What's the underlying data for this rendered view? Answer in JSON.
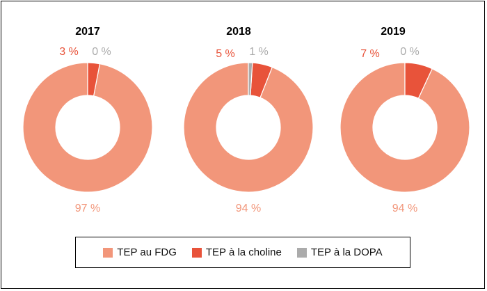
{
  "chart_data": [
    {
      "type": "donut",
      "title": "2017",
      "categories": [
        "TEP au FDG",
        "TEP à la choline",
        "TEP à la DOPA"
      ],
      "values": [
        97,
        3,
        0
      ],
      "labels": [
        "97 %",
        "3 %",
        "0 %"
      ]
    },
    {
      "type": "donut",
      "title": "2018",
      "categories": [
        "TEP au FDG",
        "TEP à la choline",
        "TEP à la DOPA"
      ],
      "values": [
        94,
        5,
        1
      ],
      "labels": [
        "94 %",
        "5 %",
        "1 %"
      ]
    },
    {
      "type": "donut",
      "title": "2019",
      "categories": [
        "TEP au FDG",
        "TEP à la choline",
        "TEP à la DOPA"
      ],
      "values": [
        94,
        7,
        0
      ],
      "labels": [
        "94 %",
        "7 %",
        "0 %"
      ]
    }
  ],
  "colors": {
    "fdg": "#F2967A",
    "choline": "#E8533A",
    "dopa": "#ABABAB"
  },
  "legend": {
    "placement": "bottom",
    "items": [
      {
        "label": "TEP au FDG",
        "color": "#F2967A"
      },
      {
        "label": "TEP à la choline",
        "color": "#E8533A"
      },
      {
        "label": "TEP à la DOPA",
        "color": "#ABABAB"
      }
    ]
  }
}
